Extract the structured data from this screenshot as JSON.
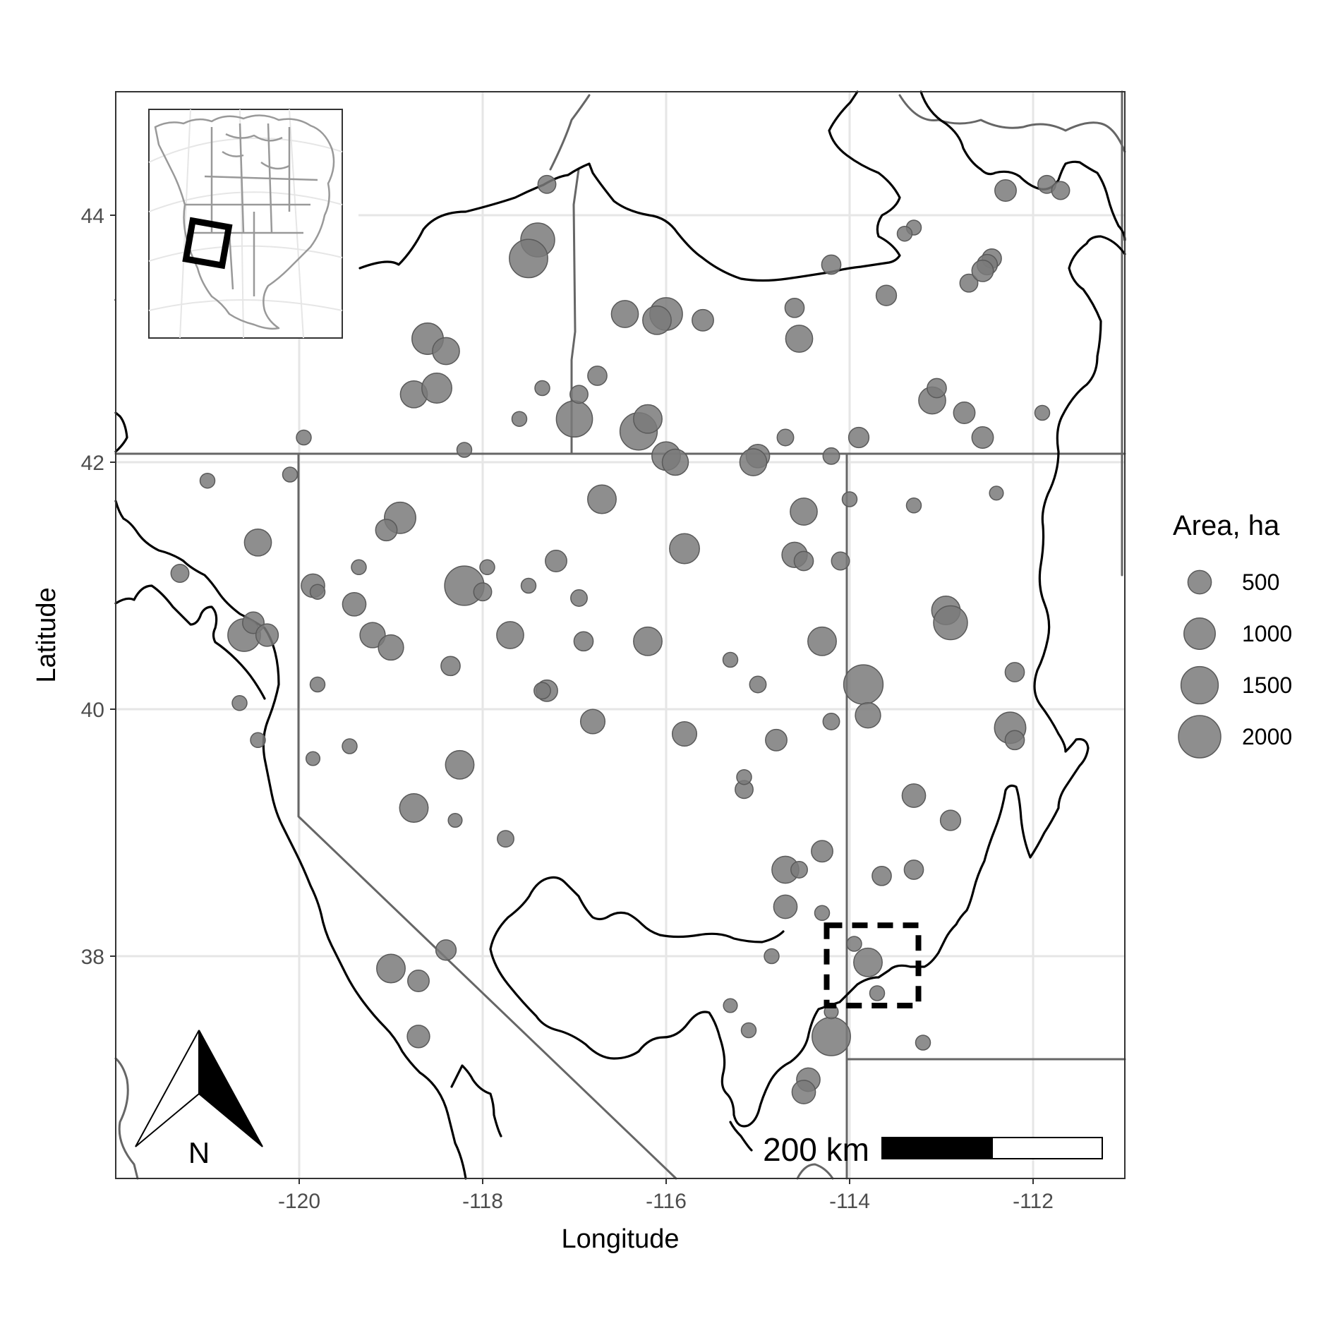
{
  "chart_data": {
    "type": "scatter",
    "title": "",
    "xlabel": "Longitude",
    "ylabel": "Latitude",
    "xlim": [
      -122.0,
      -111.0
    ],
    "ylim": [
      36.2,
      45.0
    ],
    "x_ticks": [
      -120,
      -118,
      -116,
      -114,
      -112
    ],
    "y_ticks": [
      38,
      40,
      42,
      44
    ],
    "x_tick_labels": [
      "-120",
      "-118",
      "-116",
      "-114",
      "-112"
    ],
    "y_tick_labels": [
      "38",
      "40",
      "42",
      "44"
    ],
    "grid": true,
    "point_color": "#7a7a7a",
    "legend": {
      "title": "Area, ha",
      "placement": "right",
      "sizes": [
        500,
        1000,
        1500,
        2000
      ],
      "labels": [
        "500",
        "1000",
        "1500",
        "2000"
      ]
    },
    "scale_bar": {
      "label": "200 km"
    },
    "north_arrow": {
      "label": "N"
    },
    "study_box": {
      "lon": [
        -114.25,
        -113.25
      ],
      "lat": [
        37.6,
        38.25
      ]
    },
    "points": [
      [
        -117.3,
        44.25,
        250
      ],
      [
        -117.4,
        43.8,
        1200
      ],
      [
        -117.5,
        43.65,
        1600
      ],
      [
        -116.45,
        43.2,
        700
      ],
      [
        -116.0,
        43.2,
        1100
      ],
      [
        -116.1,
        43.15,
        800
      ],
      [
        -118.6,
        43.0,
        1000
      ],
      [
        -118.4,
        42.9,
        700
      ],
      [
        -118.75,
        42.55,
        700
      ],
      [
        -118.5,
        42.6,
        900
      ],
      [
        -117.0,
        42.35,
        1400
      ],
      [
        -116.3,
        42.25,
        1500
      ],
      [
        -116.2,
        42.35,
        800
      ],
      [
        -116.0,
        42.05,
        800
      ],
      [
        -115.9,
        42.0,
        650
      ],
      [
        -114.2,
        43.6,
        300
      ],
      [
        -113.1,
        42.5,
        700
      ],
      [
        -112.75,
        42.4,
        400
      ],
      [
        -112.55,
        42.2,
        400
      ],
      [
        -111.85,
        44.25,
        250
      ],
      [
        -111.7,
        44.2,
        250
      ],
      [
        -112.3,
        44.2,
        400
      ],
      [
        -113.3,
        43.9,
        150
      ],
      [
        -118.2,
        41.0,
        1700
      ],
      [
        -118.9,
        41.55,
        1000
      ],
      [
        -119.05,
        41.45,
        400
      ],
      [
        -117.2,
        41.2,
        400
      ],
      [
        -116.7,
        41.7,
        800
      ],
      [
        -115.8,
        41.3,
        900
      ],
      [
        -114.5,
        41.6,
        700
      ],
      [
        -114.6,
        41.25,
        600
      ],
      [
        -114.5,
        41.2,
        300
      ],
      [
        -114.1,
        41.2,
        250
      ],
      [
        -120.45,
        41.35,
        700
      ],
      [
        -119.4,
        40.85,
        500
      ],
      [
        -120.6,
        40.6,
        1100
      ],
      [
        -120.5,
        40.7,
        400
      ],
      [
        -119.2,
        40.6,
        600
      ],
      [
        -119.0,
        40.5,
        600
      ],
      [
        -117.7,
        40.6,
        700
      ],
      [
        -116.2,
        40.55,
        800
      ],
      [
        -114.3,
        40.55,
        800
      ],
      [
        -113.85,
        40.2,
        1700
      ],
      [
        -113.8,
        39.95,
        600
      ],
      [
        -112.95,
        40.8,
        800
      ],
      [
        -112.9,
        40.7,
        1200
      ],
      [
        -112.2,
        40.3,
        300
      ],
      [
        -112.25,
        39.85,
        1000
      ],
      [
        -112.2,
        39.75,
        300
      ],
      [
        -118.25,
        39.55,
        800
      ],
      [
        -118.75,
        39.2,
        800
      ],
      [
        -116.8,
        39.9,
        550
      ],
      [
        -115.8,
        39.8,
        550
      ],
      [
        -113.3,
        39.3,
        500
      ],
      [
        -112.9,
        39.1,
        350
      ],
      [
        -114.7,
        38.7,
        700
      ],
      [
        -114.7,
        38.4,
        500
      ],
      [
        -114.3,
        38.85,
        400
      ],
      [
        -113.8,
        37.95,
        800
      ],
      [
        -114.2,
        37.35,
        1600
      ],
      [
        -114.45,
        37.0,
        500
      ],
      [
        -114.5,
        36.9,
        500
      ],
      [
        -113.3,
        38.7,
        300
      ],
      [
        -113.65,
        38.65,
        300
      ],
      [
        -119.0,
        37.9,
        800
      ],
      [
        -118.7,
        37.8,
        400
      ],
      [
        -118.4,
        38.05,
        350
      ],
      [
        -118.7,
        37.35,
        450
      ],
      [
        -119.8,
        40.2,
        150
      ],
      [
        -117.3,
        40.15,
        400
      ],
      [
        -115.0,
        42.05,
        500
      ],
      [
        -115.05,
        42.0,
        700
      ],
      [
        -114.7,
        42.2,
        200
      ],
      [
        -114.2,
        42.05,
        200
      ],
      [
        -113.9,
        42.2,
        350
      ],
      [
        -115.6,
        43.15,
        400
      ],
      [
        -114.6,
        43.25,
        300
      ],
      [
        -114.55,
        43.0,
        700
      ],
      [
        -113.6,
        43.35,
        350
      ],
      [
        -113.05,
        42.6,
        300
      ],
      [
        -112.7,
        43.45,
        250
      ],
      [
        -112.45,
        43.65,
        300
      ],
      [
        -112.5,
        43.6,
        350
      ],
      [
        -112.55,
        43.55,
        400
      ],
      [
        -113.4,
        43.85,
        150
      ],
      [
        -117.95,
        41.15,
        150
      ],
      [
        -117.5,
        41.0,
        150
      ],
      [
        -116.95,
        40.9,
        200
      ],
      [
        -119.85,
        41.0,
        500
      ],
      [
        -120.35,
        40.6,
        450
      ],
      [
        -120.65,
        40.05,
        150
      ],
      [
        -120.45,
        39.75,
        150
      ],
      [
        -119.85,
        39.6,
        120
      ],
      [
        -119.45,
        39.7,
        150
      ],
      [
        -118.3,
        39.1,
        120
      ],
      [
        -117.75,
        38.95,
        200
      ],
      [
        -115.3,
        37.6,
        120
      ],
      [
        -115.1,
        37.4,
        150
      ],
      [
        -114.85,
        38.0,
        150
      ],
      [
        -114.2,
        37.55,
        120
      ],
      [
        -113.7,
        37.7,
        150
      ],
      [
        -113.2,
        37.3,
        150
      ],
      [
        -114.0,
        41.7,
        150
      ],
      [
        -113.3,
        41.65,
        150
      ],
      [
        -111.9,
        42.4,
        150
      ],
      [
        -112.4,
        41.75,
        120
      ],
      [
        -115.0,
        40.2,
        200
      ],
      [
        -114.8,
        39.75,
        400
      ],
      [
        -114.55,
        38.7,
        200
      ],
      [
        -114.3,
        38.35,
        150
      ],
      [
        -113.95,
        38.1,
        150
      ],
      [
        -116.75,
        42.7,
        300
      ],
      [
        -116.95,
        42.55,
        250
      ],
      [
        -117.35,
        42.6,
        150
      ],
      [
        -117.6,
        42.35,
        150
      ],
      [
        -118.2,
        42.1,
        150
      ],
      [
        -119.95,
        42.2,
        150
      ],
      [
        -120.1,
        41.9,
        150
      ],
      [
        -121.3,
        41.1,
        250
      ],
      [
        -121.0,
        41.85,
        150
      ],
      [
        -119.8,
        40.95,
        150
      ],
      [
        -119.35,
        41.15,
        150
      ],
      [
        -118.35,
        40.35,
        300
      ],
      [
        -118.0,
        40.95,
        250
      ],
      [
        -117.35,
        40.15,
        200
      ],
      [
        -116.9,
        40.55,
        300
      ],
      [
        -115.3,
        40.4,
        150
      ],
      [
        -115.15,
        39.35,
        250
      ],
      [
        -115.15,
        39.45,
        150
      ],
      [
        -114.2,
        39.9,
        200
      ]
    ]
  }
}
